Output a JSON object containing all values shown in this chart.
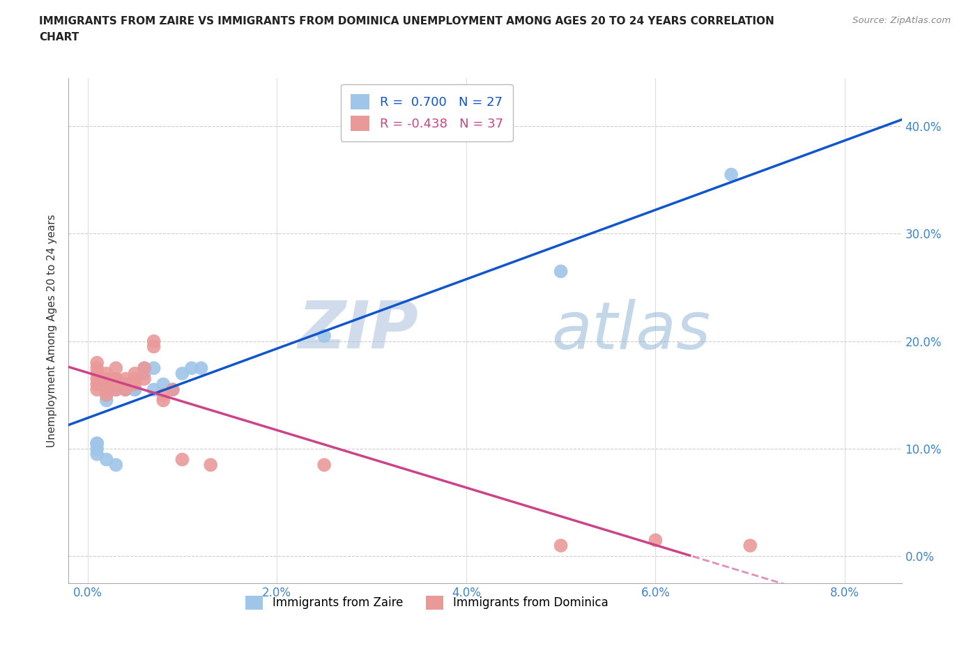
{
  "title_line1": "IMMIGRANTS FROM ZAIRE VS IMMIGRANTS FROM DOMINICA UNEMPLOYMENT AMONG AGES 20 TO 24 YEARS CORRELATION",
  "title_line2": "CHART",
  "source": "Source: ZipAtlas.com",
  "xlabel_ticks": [
    "0.0%",
    "2.0%",
    "4.0%",
    "6.0%",
    "8.0%"
  ],
  "xlabel_vals": [
    0.0,
    0.02,
    0.04,
    0.06,
    0.08
  ],
  "ylabel_ticks": [
    "0.0%",
    "10.0%",
    "20.0%",
    "30.0%",
    "40.0%"
  ],
  "ylabel_vals": [
    0.0,
    0.1,
    0.2,
    0.3,
    0.4
  ],
  "xlim": [
    -0.002,
    0.086
  ],
  "ylim": [
    -0.025,
    0.445
  ],
  "zaire_color": "#9fc5e8",
  "dominica_color": "#ea9999",
  "zaire_line_color": "#1155cc",
  "dominica_line_color": "#cc4488",
  "zaire_R": 0.7,
  "zaire_N": 27,
  "dominica_R": -0.438,
  "dominica_N": 37,
  "watermark_zip": "ZIP",
  "watermark_atlas": "atlas",
  "ylabel": "Unemployment Among Ages 20 to 24 years",
  "zaire_x": [
    0.001,
    0.001,
    0.001,
    0.001,
    0.002,
    0.002,
    0.002,
    0.002,
    0.003,
    0.003,
    0.003,
    0.004,
    0.004,
    0.005,
    0.005,
    0.006,
    0.006,
    0.007,
    0.007,
    0.008,
    0.009,
    0.01,
    0.011,
    0.012,
    0.025,
    0.05,
    0.068
  ],
  "zaire_y": [
    0.105,
    0.105,
    0.1,
    0.095,
    0.155,
    0.15,
    0.145,
    0.09,
    0.16,
    0.155,
    0.085,
    0.16,
    0.155,
    0.155,
    0.155,
    0.175,
    0.17,
    0.175,
    0.155,
    0.16,
    0.155,
    0.17,
    0.175,
    0.175,
    0.205,
    0.265,
    0.355
  ],
  "dominica_x": [
    0.001,
    0.001,
    0.001,
    0.001,
    0.001,
    0.001,
    0.002,
    0.002,
    0.002,
    0.002,
    0.002,
    0.002,
    0.003,
    0.003,
    0.003,
    0.003,
    0.003,
    0.003,
    0.004,
    0.004,
    0.004,
    0.005,
    0.005,
    0.005,
    0.006,
    0.006,
    0.007,
    0.007,
    0.008,
    0.008,
    0.009,
    0.01,
    0.013,
    0.025,
    0.05,
    0.06,
    0.07
  ],
  "dominica_y": [
    0.155,
    0.16,
    0.165,
    0.17,
    0.175,
    0.18,
    0.15,
    0.155,
    0.16,
    0.165,
    0.165,
    0.17,
    0.155,
    0.16,
    0.16,
    0.165,
    0.165,
    0.175,
    0.155,
    0.16,
    0.165,
    0.16,
    0.165,
    0.17,
    0.165,
    0.175,
    0.195,
    0.2,
    0.145,
    0.15,
    0.155,
    0.09,
    0.085,
    0.085,
    0.01,
    0.015,
    0.01
  ],
  "marker_size": 200,
  "zaire_line_intercept": 0.075,
  "zaire_line_slope": 3.2,
  "dominica_line_intercept": 0.168,
  "dominica_line_slope": -2.5
}
